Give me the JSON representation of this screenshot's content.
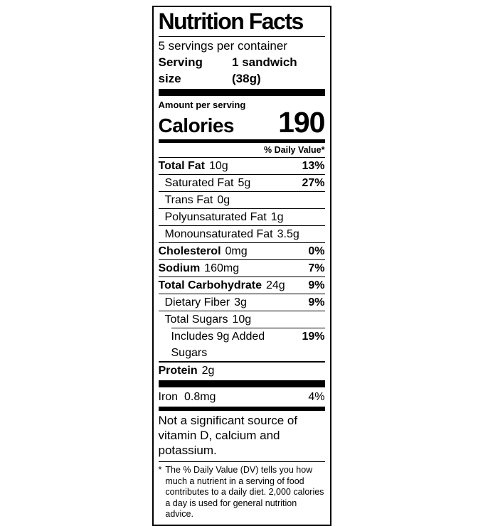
{
  "colors": {
    "text": "#000000",
    "background": "#ffffff",
    "rule": "#000000"
  },
  "label": {
    "title": "Nutrition Facts",
    "servings_per_container": "5 servings per container",
    "serving_size_label": "Serving size",
    "serving_size_value": "1 sandwich (38g)",
    "amount_per_serving": "Amount per serving",
    "calories_label": "Calories",
    "calories_value": "190",
    "daily_value_header": "% Daily Value*",
    "rows": [
      {
        "name": "Total Fat",
        "amount": "10g",
        "dv": "13%"
      },
      {
        "name": "Saturated Fat",
        "amount": "5g",
        "dv": "27%"
      },
      {
        "name": "Trans Fat",
        "amount": "0g",
        "dv": ""
      },
      {
        "name": "Polyunsaturated Fat",
        "amount": "1g",
        "dv": ""
      },
      {
        "name": "Monounsaturated Fat",
        "amount": "3.5g",
        "dv": ""
      },
      {
        "name": "Cholesterol",
        "amount": "0mg",
        "dv": "0%"
      },
      {
        "name": "Sodium",
        "amount": "160mg",
        "dv": "7%"
      },
      {
        "name": "Total Carbohydrate",
        "amount": "24g",
        "dv": "9%"
      },
      {
        "name": "Dietary Fiber",
        "amount": "3g",
        "dv": "9%"
      },
      {
        "name": "Total Sugars",
        "amount": "10g",
        "dv": ""
      },
      {
        "name": "Includes 9g Added Sugars",
        "amount": "",
        "dv": "19%"
      },
      {
        "name": "Protein",
        "amount": "2g",
        "dv": ""
      }
    ],
    "minerals": [
      {
        "name": "Iron",
        "amount": "0.8mg",
        "dv": "4%"
      }
    ],
    "not_significant_note": "Not a significant source of vitamin D, calcium and potassium.",
    "footnote_marker": "*",
    "footnote_text": "The % Daily Value (DV) tells you how much a nutrient in a serving of food contributes to a daily diet. 2,000 calories a day is used for general nutrition advice."
  }
}
